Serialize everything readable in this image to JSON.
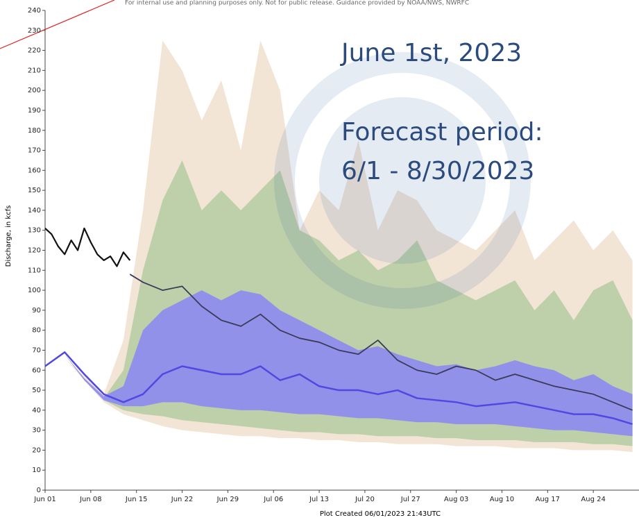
{
  "chart_data": {
    "type": "ensemble",
    "notice": "For internal use and planning purposes only. Not for public release. Guidance provided by NOAA/NWS, NWRFC",
    "annotations": [
      "June 1st, 2023",
      "Forecast period:",
      "6/1 - 8/30/2023"
    ],
    "y_label": "Discharge, in kcfs",
    "x_label": "Plot Created 06/01/2023 21:43UTC",
    "xlim": [
      0,
      91
    ],
    "ylim": [
      0,
      240
    ],
    "xticks": [
      {
        "value": 0,
        "label": "Jun 01"
      },
      {
        "value": 7,
        "label": "Jun 08"
      },
      {
        "value": 14,
        "label": "Jun 15"
      },
      {
        "value": 21,
        "label": "Jun 22"
      },
      {
        "value": 28,
        "label": "Jun 29"
      },
      {
        "value": 35,
        "label": "Jul 06"
      },
      {
        "value": 42,
        "label": "Jul 13"
      },
      {
        "value": 49,
        "label": "Jul 20"
      },
      {
        "value": 56,
        "label": "Jul 27"
      },
      {
        "value": 63,
        "label": "Aug 03"
      },
      {
        "value": 70,
        "label": "Aug 10"
      },
      {
        "value": 77,
        "label": "Aug 17"
      },
      {
        "value": 84,
        "label": "Aug 24"
      }
    ],
    "yticks": [
      0,
      10,
      20,
      30,
      40,
      50,
      60,
      70,
      80,
      90,
      100,
      110,
      120,
      130,
      140,
      150,
      160,
      170,
      180,
      190,
      200,
      210,
      220,
      230,
      240
    ],
    "series": [
      {
        "kind": "band",
        "color": "#f0e0cf",
        "x": [
          0,
          3,
          6,
          9,
          12,
          15,
          18,
          21,
          24,
          27,
          30,
          33,
          36,
          39,
          42,
          45,
          48,
          51,
          54,
          57,
          60,
          63,
          66,
          69,
          72,
          75,
          78,
          81,
          84,
          87,
          90
        ],
        "values": [
          62,
          66,
          57,
          48,
          75,
          140,
          225,
          210,
          185,
          205,
          170,
          225,
          200,
          130,
          150,
          140,
          175,
          130,
          150,
          145,
          130,
          125,
          120,
          130,
          140,
          115,
          125,
          135,
          120,
          130,
          115
        ],
        "lower": [
          62,
          66,
          55,
          44,
          38,
          35,
          32,
          30,
          29,
          28,
          27,
          27,
          26,
          26,
          25,
          25,
          24,
          24,
          23,
          23,
          23,
          22,
          22,
          22,
          21,
          21,
          21,
          20,
          20,
          20,
          19
        ]
      },
      {
        "kind": "band",
        "color": "#b5cca2",
        "x": [
          0,
          3,
          6,
          9,
          12,
          15,
          18,
          21,
          24,
          27,
          30,
          33,
          36,
          39,
          42,
          45,
          48,
          51,
          54,
          57,
          60,
          63,
          66,
          69,
          72,
          75,
          78,
          81,
          84,
          87,
          90
        ],
        "values": [
          62,
          68,
          56,
          46,
          60,
          110,
          145,
          165,
          140,
          150,
          140,
          150,
          160,
          130,
          125,
          115,
          120,
          110,
          115,
          125,
          105,
          100,
          95,
          100,
          105,
          90,
          100,
          85,
          100,
          105,
          85
        ],
        "lower": [
          62,
          68,
          55,
          45,
          40,
          38,
          37,
          35,
          34,
          33,
          32,
          31,
          30,
          29,
          29,
          28,
          28,
          27,
          27,
          27,
          26,
          26,
          25,
          25,
          25,
          24,
          24,
          24,
          23,
          23,
          22
        ]
      },
      {
        "kind": "band",
        "color": "#8a86f5",
        "x": [
          0,
          3,
          6,
          9,
          12,
          15,
          18,
          21,
          24,
          27,
          30,
          33,
          36,
          39,
          42,
          45,
          48,
          51,
          54,
          57,
          60,
          63,
          66,
          69,
          72,
          75,
          78,
          81,
          84,
          87,
          90
        ],
        "values": [
          62,
          68,
          56,
          47,
          52,
          80,
          90,
          95,
          100,
          95,
          100,
          98,
          90,
          85,
          80,
          75,
          70,
          72,
          68,
          65,
          62,
          63,
          60,
          62,
          65,
          62,
          60,
          55,
          58,
          52,
          48
        ],
        "lower": [
          62,
          68,
          55,
          45,
          42,
          42,
          44,
          44,
          42,
          41,
          40,
          40,
          39,
          38,
          38,
          37,
          36,
          36,
          35,
          34,
          34,
          33,
          33,
          33,
          32,
          31,
          30,
          30,
          29,
          28,
          27
        ]
      },
      {
        "kind": "line",
        "color": "#5048e0",
        "width": 2.5,
        "x": [
          0,
          3,
          6,
          9,
          12,
          15,
          18,
          21,
          24,
          27,
          30,
          33,
          36,
          39,
          42,
          45,
          48,
          51,
          54,
          57,
          60,
          63,
          66,
          69,
          72,
          75,
          78,
          81,
          84,
          87,
          90
        ],
        "values": [
          62,
          69,
          58,
          48,
          44,
          48,
          58,
          62,
          60,
          58,
          58,
          62,
          55,
          58,
          52,
          50,
          50,
          48,
          50,
          46,
          45,
          44,
          42,
          43,
          44,
          42,
          40,
          38,
          38,
          36,
          33
        ]
      },
      {
        "kind": "line",
        "color": "#3a3a5a",
        "width": 1.8,
        "x": [
          13,
          15,
          18,
          21,
          24,
          27,
          30,
          33,
          36,
          39,
          42,
          45,
          48,
          51,
          54,
          57,
          60,
          63,
          66,
          69,
          72,
          75,
          78,
          81,
          84,
          87,
          90
        ],
        "values": [
          108,
          104,
          100,
          102,
          92,
          85,
          82,
          88,
          80,
          76,
          74,
          70,
          68,
          75,
          65,
          60,
          58,
          62,
          60,
          55,
          58,
          55,
          52,
          50,
          48,
          44,
          40
        ]
      },
      {
        "kind": "line",
        "color": "#111111",
        "width": 2.2,
        "x": [
          0,
          1,
          2,
          3,
          4,
          5,
          6,
          7,
          8,
          9,
          10,
          11,
          12,
          13
        ],
        "values": [
          131,
          128,
          122,
          118,
          125,
          120,
          131,
          124,
          118,
          115,
          117,
          112,
          119,
          115
        ]
      }
    ]
  }
}
